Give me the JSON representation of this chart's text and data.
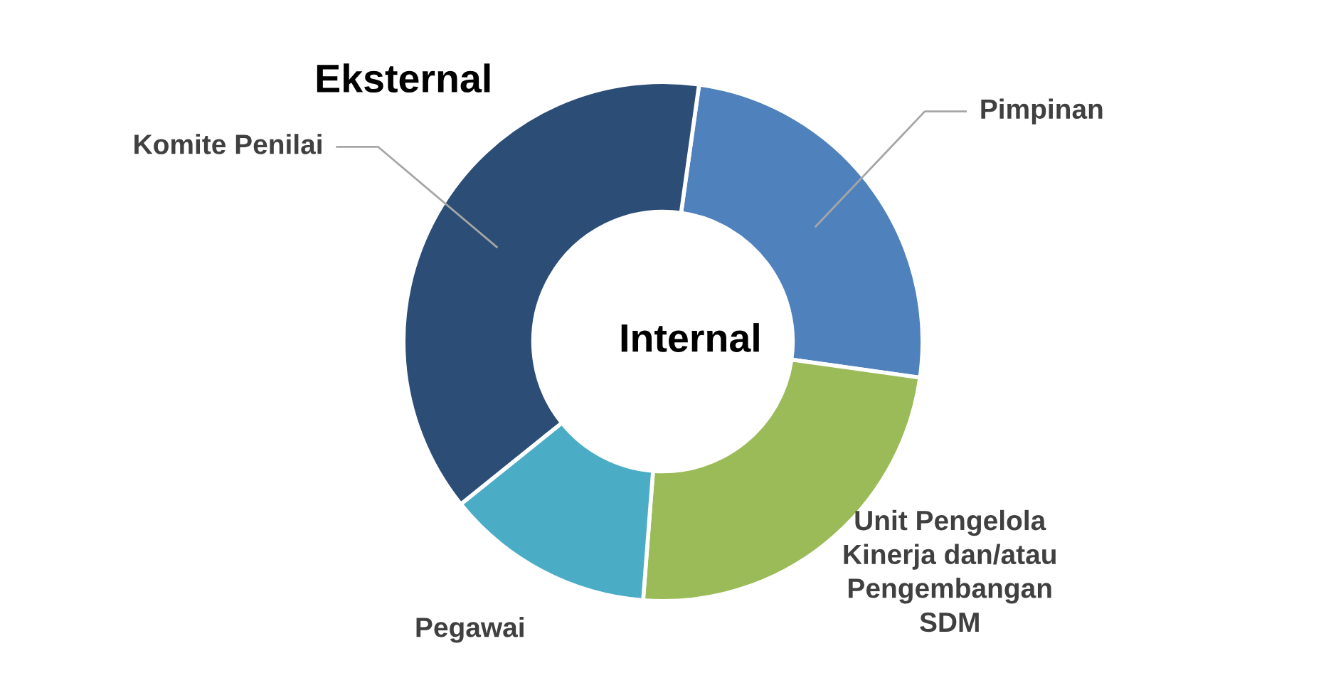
{
  "chart_data": {
    "type": "donut",
    "categories": [
      "Pimpinan",
      "Unit Pengelola\nKinerja dan/atau\nPengembangan\nSDM",
      "Pegawai",
      "Komite Penilai"
    ],
    "values": [
      25,
      24,
      13,
      38
    ],
    "colors": [
      "#4f81bd",
      "#9bbb59",
      "#4bacc6",
      "#2c4d75"
    ],
    "annotations": [
      "Eksternal",
      "Internal"
    ]
  }
}
